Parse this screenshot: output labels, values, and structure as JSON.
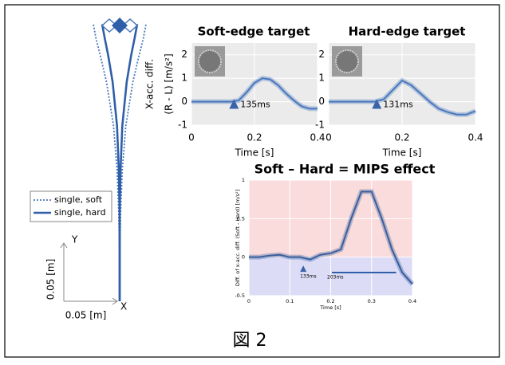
{
  "caption": "図 2",
  "chart_data": [
    {
      "type": "trajectory",
      "scale_bar": {
        "value": 0.05,
        "label": "0.05 [m]"
      },
      "xaxis_label": "X",
      "yaxis_label": "Y",
      "series": [
        {
          "name": "single, soft",
          "color": "#4a78bd",
          "dash": true,
          "x": [
            0,
            0,
            -0.001,
            -0.003,
            -0.007,
            -0.015,
            -0.022,
            -0.027,
            -0.03
          ],
          "y": [
            0,
            0.05,
            0.1,
            0.15,
            0.2,
            0.25,
            0.28,
            0.3,
            0.316
          ]
        },
        {
          "color": "#4a78bd",
          "dash": true,
          "x": [
            0,
            0,
            0.001,
            0.003,
            0.007,
            0.015,
            0.022,
            0.027,
            0.03
          ],
          "y": [
            0,
            0.05,
            0.1,
            0.15,
            0.2,
            0.25,
            0.28,
            0.3,
            0.316
          ]
        },
        {
          "name": "single, hard",
          "color": "#2f5fa8",
          "dash": false,
          "x": [
            0,
            0,
            0,
            -0.001,
            -0.003,
            -0.008,
            -0.013,
            -0.017,
            -0.02
          ],
          "y": [
            0,
            0.05,
            0.1,
            0.15,
            0.2,
            0.25,
            0.28,
            0.3,
            0.316
          ]
        },
        {
          "color": "#2f5fa8",
          "dash": false,
          "x": [
            0,
            0,
            0,
            0.001,
            0.003,
            0.008,
            0.013,
            0.017,
            0.02
          ],
          "y": [
            0,
            0.05,
            0.1,
            0.15,
            0.2,
            0.25,
            0.28,
            0.3,
            0.316
          ]
        }
      ]
    },
    {
      "type": "line",
      "title": "Soft-edge target",
      "ylabel": [
        "X-acc. diff.",
        "(R - L) [m/s²]"
      ],
      "xlabel": "Time [s]",
      "x": [
        0,
        0.025,
        0.05,
        0.075,
        0.1,
        0.125,
        0.15,
        0.175,
        0.2,
        0.225,
        0.25,
        0.275,
        0.3,
        0.325,
        0.35,
        0.375,
        0.4
      ],
      "series": [
        {
          "color": "#4a78bd",
          "values": [
            0,
            0,
            0,
            0,
            0,
            0,
            0.05,
            0.4,
            0.8,
            1.0,
            0.95,
            0.7,
            0.35,
            0.05,
            -0.2,
            -0.3,
            -0.3
          ]
        }
      ],
      "xlim": [
        0,
        0.4
      ],
      "xticks": [
        0,
        0.2,
        0.4
      ],
      "ylim": [
        -1,
        2.5
      ],
      "yticks": [
        -1,
        0,
        1,
        2
      ],
      "grid": true,
      "background": "#ebebeb",
      "annotation": {
        "text": "135ms",
        "x": 0.135,
        "y": -0.1
      }
    },
    {
      "type": "line",
      "title": "Hard-edge target",
      "xlabel": "Time [s]",
      "x": [
        0,
        0.025,
        0.05,
        0.075,
        0.1,
        0.125,
        0.15,
        0.175,
        0.2,
        0.225,
        0.25,
        0.275,
        0.3,
        0.325,
        0.35,
        0.375,
        0.4
      ],
      "series": [
        {
          "color": "#4a78bd",
          "values": [
            0,
            0,
            0,
            0,
            0,
            0,
            0.1,
            0.5,
            0.9,
            0.7,
            0.35,
            0,
            -0.3,
            -0.45,
            -0.55,
            -0.55,
            -0.4
          ]
        }
      ],
      "xlim": [
        0,
        0.4
      ],
      "xticks": [
        0,
        0.2,
        0.4
      ],
      "ylim": [
        -1,
        2.5
      ],
      "yticks": [
        -1,
        0,
        1,
        2
      ],
      "grid": true,
      "background": "#ebebeb",
      "annotation": {
        "text": "131ms",
        "x": 0.131,
        "y": -0.1
      }
    },
    {
      "type": "line",
      "title": "Soft – Hard = MIPS effect",
      "ylabel": [
        "Diff. of x-acc. diff. (Soft - Hard) [m/s²]"
      ],
      "xlabel": "Time [s]",
      "x": [
        0,
        0.025,
        0.05,
        0.075,
        0.1,
        0.125,
        0.15,
        0.175,
        0.2,
        0.225,
        0.25,
        0.275,
        0.3,
        0.325,
        0.35,
        0.375,
        0.4
      ],
      "series": [
        {
          "color": "#3a5f9e",
          "values": [
            0,
            0,
            0.02,
            0.03,
            0,
            0,
            -0.03,
            0.03,
            0.05,
            0.1,
            0.5,
            0.85,
            0.85,
            0.5,
            0.1,
            -0.2,
            -0.35
          ]
        }
      ],
      "xlim": [
        0,
        0.4
      ],
      "xticks": [
        0,
        0.1,
        0.2,
        0.3,
        0.4
      ],
      "ylim": [
        -0.5,
        1
      ],
      "yticks": [
        -0.5,
        0,
        0.5,
        1
      ],
      "grid": true,
      "background": {
        "above": "#fadcdc",
        "below": "#dcdcf6"
      },
      "annotation": {
        "text": "133ms",
        "x": 0.133,
        "y": -0.15
      },
      "significance_bar": {
        "label": "203ms",
        "x0": 0.203,
        "x1": 0.36,
        "y": -0.2
      }
    }
  ]
}
